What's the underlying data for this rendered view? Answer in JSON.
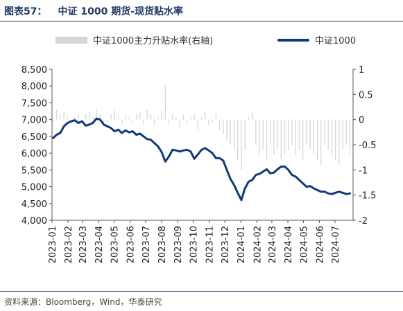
{
  "header": {
    "figure_label": "图表57：",
    "figure_title": "中证 1000 期货-现货贴水率"
  },
  "footer": {
    "source": "资料来源：Bloomberg，Wind，华泰研究"
  },
  "colors": {
    "line": "#0f3a78",
    "bars": "#d6d6d6",
    "title": "#1f3864"
  },
  "chart_data": {
    "type": "line",
    "title": "中证 1000 期货-现货贴水率",
    "legend_position": "top",
    "grid": false,
    "series": [
      {
        "name": "中证1000",
        "axis": "left",
        "type": "line",
        "x": [
          "2023-01-03",
          "2023-01-10",
          "2023-01-17",
          "2023-01-24",
          "2023-01-31",
          "2023-02-07",
          "2023-02-14",
          "2023-02-21",
          "2023-02-28",
          "2023-03-07",
          "2023-03-14",
          "2023-03-21",
          "2023-03-28",
          "2023-04-04",
          "2023-04-11",
          "2023-04-18",
          "2023-04-25",
          "2023-05-02",
          "2023-05-09",
          "2023-05-16",
          "2023-05-23",
          "2023-05-30",
          "2023-06-06",
          "2023-06-13",
          "2023-06-20",
          "2023-06-27",
          "2023-07-04",
          "2023-07-11",
          "2023-07-18",
          "2023-07-25",
          "2023-08-01",
          "2023-08-08",
          "2023-08-15",
          "2023-08-22",
          "2023-08-29",
          "2023-09-05",
          "2023-09-12",
          "2023-09-19",
          "2023-09-26",
          "2023-10-03",
          "2023-10-10",
          "2023-10-17",
          "2023-10-24",
          "2023-10-31",
          "2023-11-07",
          "2023-11-14",
          "2023-11-21",
          "2023-11-28",
          "2023-12-05",
          "2023-12-12",
          "2023-12-19",
          "2023-12-26",
          "2024-01-02",
          "2024-01-09",
          "2024-01-16",
          "2024-01-23",
          "2024-01-30",
          "2024-02-06",
          "2024-02-13",
          "2024-02-20",
          "2024-02-27",
          "2024-03-05",
          "2024-03-12",
          "2024-03-19",
          "2024-03-26",
          "2024-04-02",
          "2024-04-09",
          "2024-04-16",
          "2024-04-23",
          "2024-04-30",
          "2024-05-07",
          "2024-05-14",
          "2024-05-21",
          "2024-05-28",
          "2024-06-04",
          "2024-06-11",
          "2024-06-18",
          "2024-06-25",
          "2024-07-02",
          "2024-07-09",
          "2024-07-16",
          "2024-07-23",
          "2024-07-30"
        ],
        "values": [
          6450,
          6550,
          6600,
          6800,
          6900,
          6950,
          6980,
          6900,
          6950,
          6820,
          6850,
          6900,
          7030,
          7000,
          6850,
          6800,
          6750,
          6650,
          6700,
          6600,
          6680,
          6620,
          6650,
          6550,
          6580,
          6500,
          6420,
          6400,
          6300,
          6200,
          6030,
          5750,
          5900,
          6100,
          6080,
          6050,
          6080,
          6100,
          6050,
          5830,
          5960,
          6100,
          6150,
          6080,
          6000,
          5850,
          5850,
          5780,
          5500,
          5230,
          5050,
          4820,
          4600,
          4950,
          5150,
          5200,
          5350,
          5380,
          5450,
          5520,
          5400,
          5420,
          5520,
          5600,
          5600,
          5500,
          5350,
          5300,
          5200,
          5100,
          5000,
          5020,
          4950,
          4900,
          4850,
          4850,
          4800,
          4780,
          4820,
          4850,
          4820,
          4780,
          4800
        ]
      },
      {
        "name": "中证1000主力升贴水率(右轴)",
        "axis": "right",
        "type": "bar",
        "x": [
          "2023-01-03",
          "2023-01-10",
          "2023-01-17",
          "2023-01-24",
          "2023-01-31",
          "2023-02-07",
          "2023-02-14",
          "2023-02-21",
          "2023-02-28",
          "2023-03-07",
          "2023-03-14",
          "2023-03-21",
          "2023-03-28",
          "2023-04-04",
          "2023-04-11",
          "2023-04-18",
          "2023-04-25",
          "2023-05-02",
          "2023-05-09",
          "2023-05-16",
          "2023-05-23",
          "2023-05-30",
          "2023-06-06",
          "2023-06-13",
          "2023-06-20",
          "2023-06-27",
          "2023-07-04",
          "2023-07-11",
          "2023-07-18",
          "2023-07-25",
          "2023-08-01",
          "2023-08-08",
          "2023-08-15",
          "2023-08-22",
          "2023-08-29",
          "2023-09-05",
          "2023-09-12",
          "2023-09-19",
          "2023-09-26",
          "2023-10-03",
          "2023-10-10",
          "2023-10-17",
          "2023-10-24",
          "2023-10-31",
          "2023-11-07",
          "2023-11-14",
          "2023-11-21",
          "2023-11-28",
          "2023-12-05",
          "2023-12-12",
          "2023-12-19",
          "2023-12-26",
          "2024-01-02",
          "2024-01-09",
          "2024-01-16",
          "2024-01-23",
          "2024-01-30",
          "2024-02-06",
          "2024-02-13",
          "2024-02-20",
          "2024-02-27",
          "2024-03-05",
          "2024-03-12",
          "2024-03-19",
          "2024-03-26",
          "2024-04-02",
          "2024-04-09",
          "2024-04-16",
          "2024-04-23",
          "2024-04-30",
          "2024-05-07",
          "2024-05-14",
          "2024-05-21",
          "2024-05-28",
          "2024-06-04",
          "2024-06-11",
          "2024-06-18",
          "2024-06-25",
          "2024-07-02",
          "2024-07-09",
          "2024-07-16",
          "2024-07-23",
          "2024-07-30"
        ],
        "values": [
          -0.05,
          0.2,
          0.1,
          0.15,
          0.05,
          -0.1,
          0.05,
          0.1,
          -0.05,
          0.1,
          0.15,
          0.05,
          0.2,
          0.1,
          -0.1,
          -0.05,
          0.1,
          0.2,
          0.05,
          -0.1,
          0.1,
          0.05,
          -0.05,
          0.1,
          0.15,
          -0.1,
          0.2,
          0.1,
          -0.1,
          0.05,
          0.2,
          0.7,
          -0.1,
          0.1,
          0.05,
          -0.15,
          0.1,
          -0.05,
          0.05,
          0.1,
          -0.2,
          0.05,
          0.15,
          -0.1,
          -0.05,
          0.1,
          -0.2,
          -0.3,
          -0.4,
          -0.5,
          -0.6,
          -0.8,
          -1.0,
          -0.6,
          0.05,
          0.15,
          -0.5,
          -0.7,
          -0.6,
          -0.8,
          -0.5,
          -0.7,
          -0.6,
          -0.8,
          -0.7,
          -0.6,
          -0.5,
          -0.7,
          -0.6,
          -0.8,
          -0.5,
          -0.6,
          -0.7,
          -0.8,
          -0.9,
          -0.5,
          -0.6,
          -0.7,
          -0.8,
          -0.9,
          -0.6,
          -0.5,
          -0.7
        ]
      }
    ],
    "x_ticks": [
      "2023-01",
      "2023-02",
      "2023-03",
      "2023-04",
      "2023-05",
      "2023-06",
      "2023-07",
      "2023-08",
      "2023-09",
      "2023-10",
      "2023-11",
      "2023-12",
      "2024-01",
      "2024-02",
      "2024-03",
      "2024-04",
      "2024-05",
      "2024-06",
      "2024-07"
    ],
    "x_range": [
      "2023-01-01",
      "2024-08-05"
    ],
    "y_left": {
      "range": [
        4000,
        8500
      ],
      "ticks": [
        4000,
        4500,
        5000,
        5500,
        6000,
        6500,
        7000,
        7500,
        8000,
        8500
      ],
      "tick_labels": [
        "4,000",
        "4,500",
        "5,000",
        "5,500",
        "6,000",
        "6,500",
        "7,000",
        "7,500",
        "8,000",
        "8,500"
      ]
    },
    "y_right": {
      "range": [
        -2,
        1
      ],
      "ticks": [
        -2,
        -1.5,
        -1,
        -0.5,
        0,
        0.5,
        1
      ],
      "tick_labels": [
        "-2",
        "-1.5",
        "-1",
        "-0.5",
        "0",
        "0.5",
        "1"
      ]
    }
  }
}
